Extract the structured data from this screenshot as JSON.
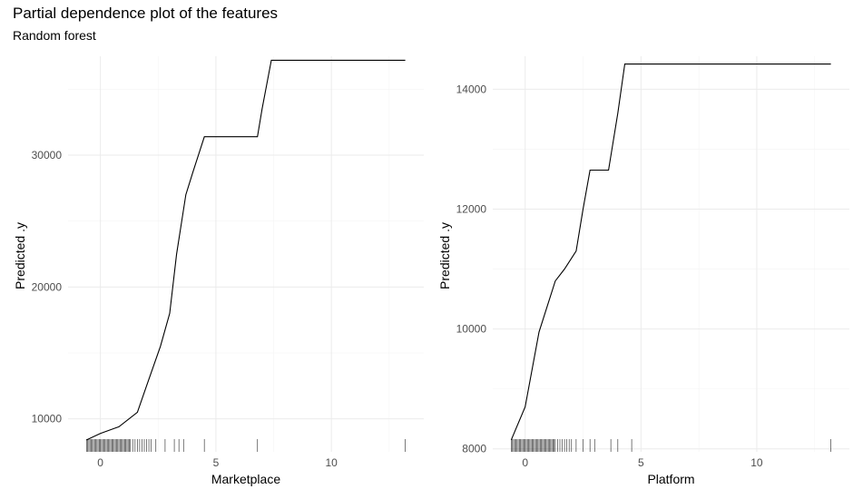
{
  "figure": {
    "title": "Partial dependence plot of the features",
    "subtitle": "Random forest"
  },
  "chart_data": [
    {
      "type": "line",
      "panel": "left",
      "xlabel": "Marketplace",
      "ylabel": "Predicted .y",
      "xlim": [
        -1.4,
        14.0
      ],
      "ylim": [
        7500,
        37500
      ],
      "x_ticks": [
        0,
        5,
        10
      ],
      "y_ticks": [
        10000,
        20000,
        30000
      ],
      "x": [
        -0.6,
        0.0,
        0.8,
        1.6,
        2.0,
        2.6,
        3.0,
        3.3,
        3.7,
        4.0,
        4.5,
        5.0,
        5.8,
        6.6,
        6.8,
        7.0,
        7.4,
        13.2
      ],
      "y": [
        8400,
        8900,
        9400,
        10500,
        12500,
        15500,
        18000,
        22500,
        27000,
        28700,
        31400,
        31400,
        31400,
        31400,
        31400,
        33500,
        37200,
        37200
      ],
      "rug": [
        -0.6,
        -0.55,
        -0.5,
        -0.45,
        -0.4,
        -0.35,
        -0.3,
        -0.25,
        -0.2,
        -0.15,
        -0.1,
        -0.05,
        0.0,
        0.05,
        0.1,
        0.15,
        0.2,
        0.25,
        0.3,
        0.35,
        0.4,
        0.45,
        0.5,
        0.55,
        0.6,
        0.65,
        0.7,
        0.75,
        0.8,
        0.85,
        0.9,
        0.95,
        1.0,
        1.05,
        1.1,
        1.15,
        1.2,
        1.25,
        1.3,
        1.4,
        1.5,
        1.6,
        1.7,
        1.8,
        1.9,
        2.0,
        2.1,
        2.2,
        2.4,
        2.8,
        3.2,
        3.4,
        3.6,
        4.5,
        6.8,
        13.2
      ],
      "grid": true
    },
    {
      "type": "line",
      "panel": "right",
      "xlabel": "Platform",
      "ylabel": "Predicted .y",
      "xlim": [
        -1.4,
        14.0
      ],
      "ylim": [
        7950,
        14550
      ],
      "x_ticks": [
        0,
        5,
        10
      ],
      "y_ticks": [
        8000,
        10000,
        12000,
        14000
      ],
      "x": [
        -0.6,
        0.0,
        0.6,
        1.3,
        1.7,
        2.2,
        2.5,
        2.8,
        3.2,
        3.6,
        4.0,
        4.3,
        13.2
      ],
      "y": [
        8150,
        8700,
        9950,
        10800,
        11000,
        11300,
        12000,
        12650,
        12650,
        12650,
        13600,
        14420,
        14420
      ],
      "rug": [
        -0.6,
        -0.55,
        -0.5,
        -0.45,
        -0.4,
        -0.35,
        -0.3,
        -0.25,
        -0.2,
        -0.15,
        -0.1,
        -0.05,
        0.0,
        0.05,
        0.1,
        0.15,
        0.2,
        0.25,
        0.3,
        0.35,
        0.4,
        0.45,
        0.5,
        0.55,
        0.6,
        0.65,
        0.7,
        0.75,
        0.8,
        0.85,
        0.9,
        0.95,
        1.0,
        1.05,
        1.1,
        1.15,
        1.2,
        1.25,
        1.3,
        1.4,
        1.5,
        1.6,
        1.7,
        1.8,
        1.9,
        2.0,
        2.2,
        2.5,
        2.8,
        3.0,
        3.7,
        4.0,
        4.6,
        13.2
      ],
      "grid": true
    }
  ],
  "colors": {
    "line": "#000000",
    "grid_major": "#ebebeb",
    "grid_minor": "#f4f4f4",
    "tick_label": "#4d4d4d"
  }
}
